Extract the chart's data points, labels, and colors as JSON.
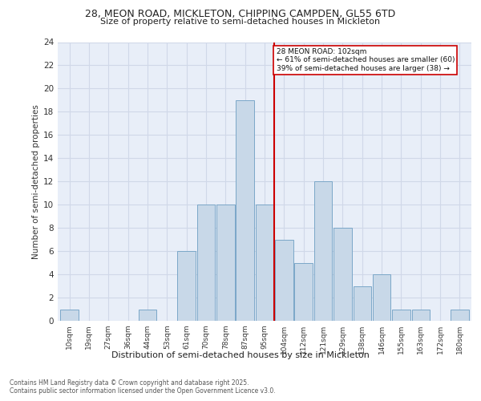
{
  "title_line1": "28, MEON ROAD, MICKLETON, CHIPPING CAMPDEN, GL55 6TD",
  "title_line2": "Size of property relative to semi-detached houses in Mickleton",
  "xlabel": "Distribution of semi-detached houses by size in Mickleton",
  "ylabel": "Number of semi-detached properties",
  "categories": [
    "10sqm",
    "19sqm",
    "27sqm",
    "36sqm",
    "44sqm",
    "53sqm",
    "61sqm",
    "70sqm",
    "78sqm",
    "87sqm",
    "95sqm",
    "104sqm",
    "112sqm",
    "121sqm",
    "129sqm",
    "138sqm",
    "146sqm",
    "155sqm",
    "163sqm",
    "172sqm",
    "180sqm"
  ],
  "values": [
    1,
    0,
    0,
    0,
    1,
    0,
    6,
    10,
    10,
    19,
    10,
    7,
    5,
    12,
    8,
    3,
    4,
    1,
    1,
    0,
    1
  ],
  "bar_color": "#c8d8e8",
  "bar_edgecolor": "#7ba7c8",
  "grid_color": "#d0d8e8",
  "bg_color": "#e8eef8",
  "vline_x_idx": 11,
  "vline_color": "#cc0000",
  "annotation_text": "28 MEON ROAD: 102sqm\n← 61% of semi-detached houses are smaller (60)\n39% of semi-detached houses are larger (38) →",
  "annotation_box_color": "#cc0000",
  "ylim": [
    0,
    24
  ],
  "yticks": [
    0,
    2,
    4,
    6,
    8,
    10,
    12,
    14,
    16,
    18,
    20,
    22,
    24
  ],
  "footnote": "Contains HM Land Registry data © Crown copyright and database right 2025.\nContains public sector information licensed under the Open Government Licence v3.0."
}
